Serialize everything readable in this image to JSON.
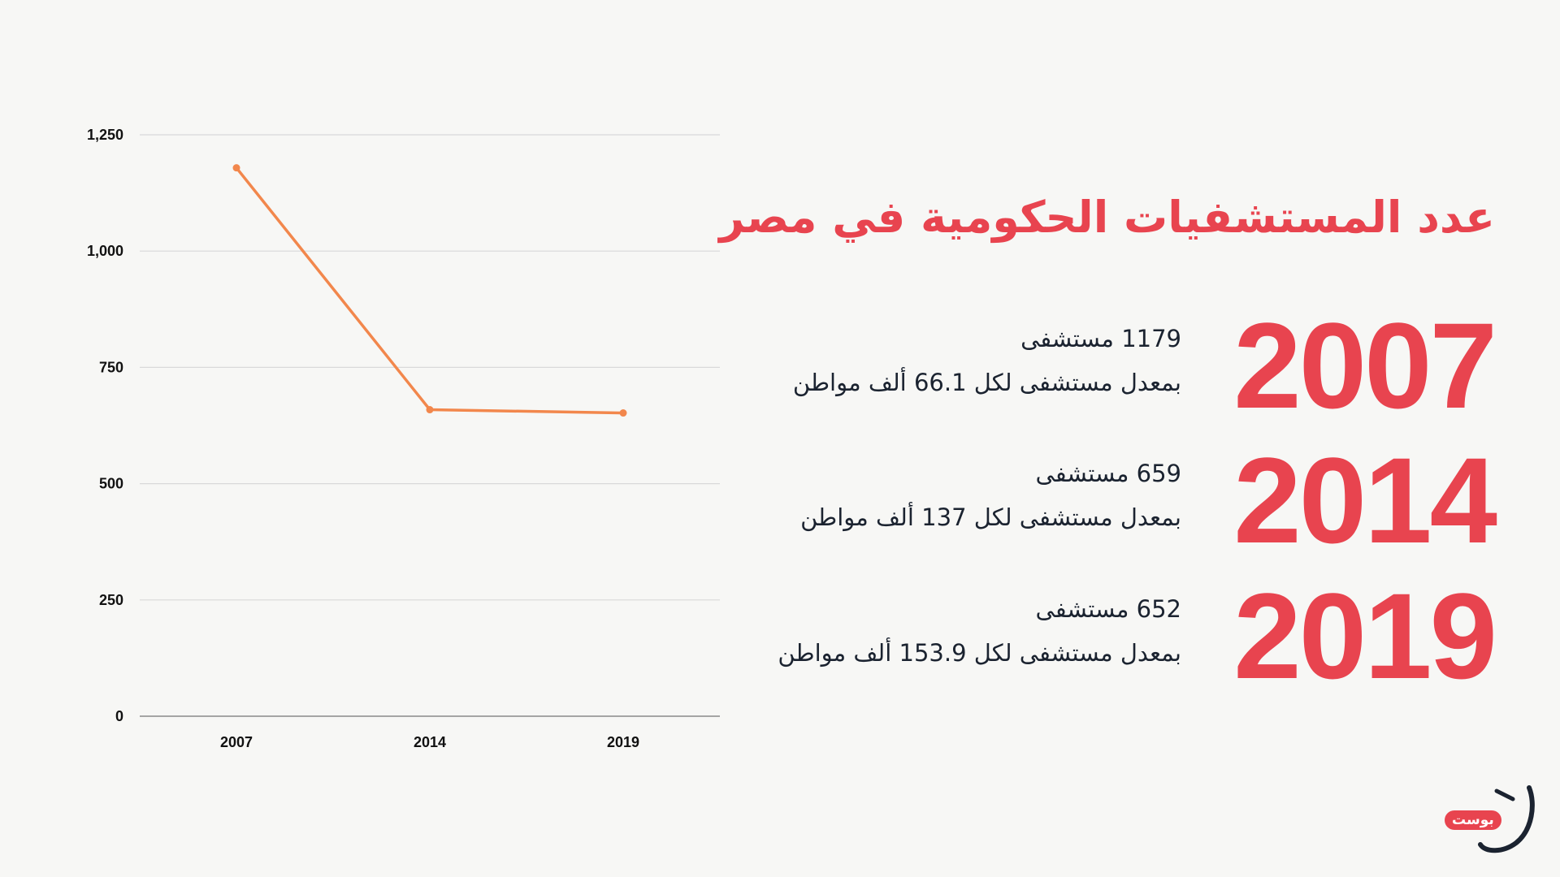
{
  "chart_data": {
    "type": "line",
    "categories": [
      "2007",
      "2014",
      "2019"
    ],
    "series": [
      {
        "values": [
          1179,
          659,
          652
        ]
      }
    ],
    "ylim": [
      0,
      1250
    ],
    "yticks": [
      0,
      250,
      500,
      750,
      1000,
      1250
    ],
    "ytick_labels": [
      "0",
      "250",
      "500",
      "750",
      "1,000",
      "1,250"
    ],
    "grid": true,
    "line_color": "#f2874c",
    "grid_color": "#d9d9d9",
    "axis_color": "#8a8a8a"
  },
  "title": "عدد المستشفيات الحكومية في مصر",
  "accent_color": "#e8444f",
  "text_color": "#1b2330",
  "entries": [
    {
      "year": "2007",
      "line1": "1179 مستشفى",
      "line2": "بمعدل مستشفى لكل 66.1 ألف مواطن"
    },
    {
      "year": "2014",
      "line1": "659 مستشفى",
      "line2": "بمعدل مستشفى لكل 137 ألف مواطن"
    },
    {
      "year": "2019",
      "line1": "652 مستشفى",
      "line2": "بمعدل مستشفى لكل 153.9 ألف مواطن"
    }
  ],
  "logo": {
    "text": "بوست",
    "icon": "nun-letter-logo-icon"
  }
}
